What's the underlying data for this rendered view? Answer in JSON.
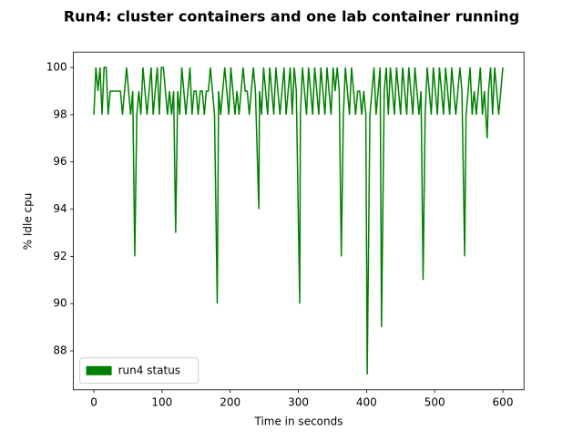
{
  "chart_data": {
    "type": "line",
    "title": "Run4: cluster containers and one lab container running",
    "x_label": "Time  in seconds",
    "y_label": "% Idle cpu",
    "x": [
      0,
      3,
      6,
      9,
      12,
      15,
      18,
      21,
      24,
      27,
      30,
      33,
      36,
      39,
      42,
      45,
      48,
      51,
      54,
      57,
      60,
      63,
      66,
      69,
      72,
      75,
      78,
      81,
      84,
      87,
      90,
      93,
      96,
      99,
      102,
      105,
      108,
      111,
      114,
      117,
      120,
      123,
      126,
      129,
      132,
      135,
      138,
      141,
      144,
      147,
      150,
      153,
      156,
      159,
      162,
      165,
      168,
      171,
      174,
      177,
      181,
      183,
      186,
      189,
      192,
      195,
      198,
      201,
      204,
      207,
      210,
      213,
      216,
      219,
      222,
      225,
      228,
      231,
      234,
      237,
      242,
      243,
      246,
      249,
      252,
      255,
      258,
      261,
      264,
      267,
      270,
      273,
      276,
      279,
      282,
      285,
      288,
      291,
      294,
      297,
      302,
      303,
      306,
      309,
      312,
      315,
      318,
      321,
      324,
      327,
      330,
      333,
      336,
      339,
      342,
      345,
      348,
      351,
      354,
      357,
      360,
      363,
      366,
      369,
      372,
      375,
      378,
      381,
      384,
      387,
      390,
      393,
      396,
      399,
      401,
      405,
      408,
      411,
      414,
      417,
      420,
      422,
      426,
      429,
      432,
      435,
      438,
      441,
      444,
      447,
      450,
      453,
      456,
      459,
      462,
      465,
      468,
      471,
      474,
      477,
      480,
      483,
      486,
      489,
      492,
      495,
      498,
      501,
      504,
      507,
      510,
      513,
      516,
      519,
      522,
      525,
      528,
      531,
      534,
      537,
      540,
      544,
      546,
      549,
      552,
      555,
      558,
      561,
      564,
      567,
      570,
      573,
      577,
      579,
      582,
      585,
      588,
      591,
      594,
      597,
      600
    ],
    "series": [
      {
        "name": "run4 status",
        "color": "#008000",
        "values": [
          98,
          100,
          99,
          100,
          98,
          100,
          100,
          98,
          99,
          99,
          99,
          99,
          99,
          99,
          98,
          99,
          100,
          99,
          98,
          99,
          92,
          98,
          99,
          98,
          100,
          99,
          98,
          99,
          100,
          98,
          99,
          100,
          98,
          100,
          100,
          99,
          98,
          99,
          98,
          99,
          93,
          99,
          98,
          100,
          99,
          98,
          99,
          100,
          98,
          99,
          99,
          98,
          99,
          99,
          98,
          99,
          99,
          100,
          99,
          98,
          90,
          99,
          98,
          99,
          100,
          99,
          98,
          100,
          99,
          98,
          99,
          98,
          99,
          100,
          99,
          99,
          98,
          99,
          100,
          99,
          94,
          99,
          98,
          100,
          99,
          98,
          100,
          99,
          98,
          100,
          99,
          98,
          99,
          100,
          98,
          99,
          100,
          98,
          100,
          99,
          90,
          98,
          100,
          99,
          98,
          100,
          99,
          98,
          100,
          99,
          98,
          100,
          99,
          98,
          100,
          99,
          98,
          100,
          99,
          100,
          99,
          92,
          98,
          100,
          99,
          98,
          100,
          99,
          98,
          99,
          99,
          98,
          99,
          98,
          87,
          98,
          99,
          100,
          98,
          99,
          100,
          89,
          99,
          100,
          98,
          100,
          99,
          98,
          100,
          99,
          98,
          100,
          99,
          98,
          100,
          99,
          98,
          100,
          99,
          98,
          99,
          91,
          98,
          100,
          99,
          98,
          100,
          99,
          98,
          100,
          99,
          98,
          100,
          99,
          98,
          100,
          99,
          98,
          99,
          100,
          99,
          92,
          98,
          99,
          100,
          98,
          99,
          98,
          99,
          100,
          98,
          99,
          97,
          99,
          100,
          98,
          100,
          99,
          98,
          99,
          100
        ]
      }
    ],
    "xlim": [
      -30,
      631
    ],
    "ylim": [
      86.35,
      100.65
    ],
    "xticks": [
      0,
      100,
      200,
      300,
      400,
      500,
      600
    ],
    "yticks": [
      88,
      90,
      92,
      94,
      96,
      98,
      100
    ],
    "legend": "lower left"
  }
}
